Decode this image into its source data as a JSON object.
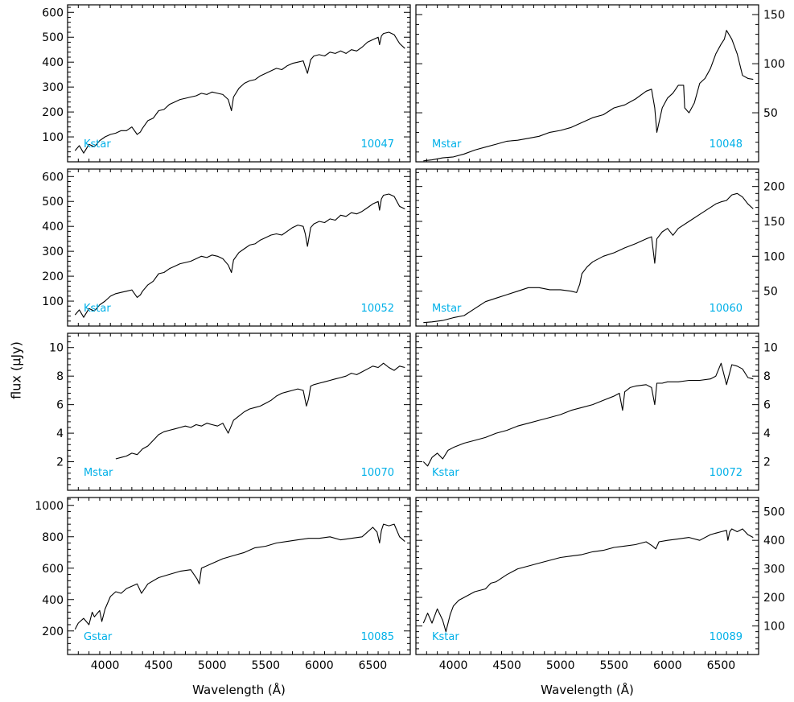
{
  "figure": {
    "ylabel": "flux (μJy)",
    "xlabel_left": "Wavelength (Å)",
    "xlabel_right": "Wavelength (Å)",
    "label_color": "#00b0e8",
    "line_color": "#000000"
  },
  "chart_data": [
    {
      "type": "line",
      "id": "10047",
      "star_type": "Kstar",
      "xlim": [
        3650,
        6850
      ],
      "ylim": [
        0,
        630
      ],
      "yticks": [
        100,
        200,
        300,
        400,
        500,
        600
      ],
      "ytick_labels": [
        "100",
        "200",
        "300",
        "400",
        "500",
        "600"
      ],
      "ytick_side": "left",
      "xticks": [
        4000,
        4500,
        5000,
        5500,
        6000,
        6500
      ],
      "xtick_labels": [],
      "x": [
        3720,
        3760,
        3800,
        3850,
        3900,
        3950,
        4000,
        4050,
        4100,
        4150,
        4200,
        4250,
        4300,
        4330,
        4350,
        4400,
        4450,
        4500,
        4550,
        4600,
        4650,
        4700,
        4750,
        4800,
        4850,
        4900,
        4950,
        5000,
        5050,
        5100,
        5150,
        5180,
        5200,
        5250,
        5300,
        5350,
        5400,
        5450,
        5500,
        5550,
        5600,
        5650,
        5700,
        5750,
        5800,
        5850,
        5870,
        5890,
        5920,
        5950,
        6000,
        6050,
        6100,
        6150,
        6200,
        6250,
        6300,
        6350,
        6400,
        6450,
        6500,
        6550,
        6563,
        6580,
        6600,
        6650,
        6700,
        6750,
        6800
      ],
      "y": [
        45,
        65,
        35,
        70,
        60,
        85,
        100,
        110,
        115,
        125,
        125,
        140,
        110,
        120,
        135,
        165,
        175,
        205,
        210,
        230,
        240,
        250,
        255,
        260,
        265,
        275,
        270,
        280,
        275,
        270,
        250,
        205,
        260,
        295,
        315,
        325,
        330,
        345,
        355,
        365,
        375,
        370,
        385,
        395,
        400,
        405,
        380,
        355,
        410,
        425,
        430,
        425,
        440,
        435,
        445,
        435,
        450,
        445,
        460,
        480,
        490,
        500,
        470,
        505,
        515,
        520,
        510,
        475,
        455
      ]
    },
    {
      "type": "line",
      "id": "10048",
      "star_type": "Mstar",
      "xlim": [
        3650,
        6850
      ],
      "ylim": [
        0,
        160
      ],
      "yticks": [
        50,
        100,
        150
      ],
      "ytick_labels": [
        "50",
        "100",
        "150"
      ],
      "ytick_side": "right",
      "xticks": [
        4000,
        4500,
        5000,
        5500,
        6000,
        6500
      ],
      "xtick_labels": [],
      "x": [
        3720,
        3800,
        3900,
        4000,
        4100,
        4200,
        4300,
        4400,
        4500,
        4600,
        4700,
        4800,
        4900,
        5000,
        5100,
        5200,
        5300,
        5400,
        5500,
        5600,
        5700,
        5800,
        5850,
        5880,
        5900,
        5950,
        6000,
        6050,
        6100,
        6150,
        6160,
        6200,
        6250,
        6300,
        6350,
        6400,
        6450,
        6500,
        6530,
        6550,
        6600,
        6650,
        6700,
        6750,
        6800
      ],
      "y": [
        1,
        2,
        4,
        5,
        8,
        12,
        15,
        18,
        21,
        22,
        24,
        26,
        30,
        32,
        35,
        40,
        45,
        48,
        55,
        58,
        64,
        72,
        74,
        55,
        30,
        55,
        65,
        70,
        78,
        78,
        55,
        50,
        60,
        80,
        85,
        95,
        110,
        120,
        125,
        134,
        125,
        110,
        88,
        85,
        84
      ]
    },
    {
      "type": "line",
      "id": "10052",
      "star_type": "Kstar",
      "xlim": [
        3650,
        6850
      ],
      "ylim": [
        0,
        630
      ],
      "yticks": [
        100,
        200,
        300,
        400,
        500,
        600
      ],
      "ytick_labels": [
        "100",
        "200",
        "300",
        "400",
        "500",
        "600"
      ],
      "ytick_side": "left",
      "xticks": [
        4000,
        4500,
        5000,
        5500,
        6000,
        6500
      ],
      "xtick_labels": [],
      "x": [
        3720,
        3760,
        3800,
        3850,
        3900,
        3950,
        4000,
        4050,
        4100,
        4150,
        4200,
        4250,
        4300,
        4330,
        4350,
        4400,
        4450,
        4500,
        4550,
        4600,
        4650,
        4700,
        4750,
        4800,
        4850,
        4900,
        4950,
        5000,
        5050,
        5100,
        5150,
        5180,
        5200,
        5250,
        5300,
        5350,
        5400,
        5450,
        5500,
        5550,
        5600,
        5650,
        5700,
        5750,
        5800,
        5850,
        5870,
        5890,
        5920,
        5950,
        6000,
        6050,
        6100,
        6150,
        6200,
        6250,
        6300,
        6350,
        6400,
        6450,
        6500,
        6550,
        6563,
        6580,
        6600,
        6650,
        6700,
        6750,
        6800
      ],
      "y": [
        45,
        65,
        35,
        70,
        60,
        85,
        100,
        120,
        130,
        135,
        140,
        145,
        115,
        125,
        140,
        165,
        180,
        210,
        215,
        230,
        240,
        250,
        255,
        260,
        270,
        280,
        275,
        285,
        280,
        270,
        245,
        215,
        265,
        295,
        310,
        325,
        330,
        345,
        355,
        365,
        370,
        365,
        380,
        395,
        405,
        400,
        370,
        320,
        395,
        410,
        420,
        415,
        430,
        425,
        445,
        440,
        455,
        450,
        460,
        475,
        490,
        500,
        465,
        510,
        525,
        530,
        520,
        480,
        470
      ]
    },
    {
      "type": "line",
      "id": "10060",
      "star_type": "Mstar",
      "xlim": [
        3650,
        6850
      ],
      "ylim": [
        0,
        225
      ],
      "yticks": [
        50,
        100,
        150,
        200
      ],
      "ytick_labels": [
        "50",
        "100",
        "150",
        "200"
      ],
      "ytick_side": "right",
      "xticks": [
        4000,
        4500,
        5000,
        5500,
        6000,
        6500
      ],
      "xtick_labels": [],
      "x": [
        3720,
        3800,
        3900,
        4000,
        4100,
        4200,
        4300,
        4400,
        4500,
        4600,
        4700,
        4800,
        4900,
        5000,
        5100,
        5150,
        5180,
        5200,
        5250,
        5300,
        5400,
        5500,
        5600,
        5700,
        5800,
        5850,
        5880,
        5900,
        5950,
        6000,
        6050,
        6100,
        6200,
        6300,
        6400,
        6450,
        6500,
        6550,
        6600,
        6650,
        6700,
        6750,
        6800
      ],
      "y": [
        5,
        6,
        8,
        12,
        15,
        25,
        35,
        40,
        45,
        50,
        55,
        55,
        52,
        52,
        50,
        48,
        60,
        75,
        85,
        92,
        100,
        105,
        112,
        118,
        125,
        128,
        90,
        125,
        135,
        140,
        130,
        140,
        150,
        160,
        170,
        175,
        178,
        180,
        188,
        190,
        185,
        175,
        168
      ]
    },
    {
      "type": "line",
      "id": "10070",
      "star_type": "Mstar",
      "xlim": [
        3650,
        6850
      ],
      "ylim": [
        0,
        11
      ],
      "yticks": [
        2,
        4,
        6,
        8,
        10
      ],
      "ytick_labels": [
        "2",
        "4",
        "6",
        "8",
        "10"
      ],
      "ytick_side": "left",
      "xticks": [
        4000,
        4500,
        5000,
        5500,
        6000,
        6500
      ],
      "xtick_labels": [],
      "x": [
        4100,
        4150,
        4200,
        4250,
        4300,
        4350,
        4400,
        4450,
        4500,
        4550,
        4600,
        4650,
        4700,
        4750,
        4800,
        4850,
        4900,
        4950,
        5000,
        5050,
        5100,
        5150,
        5200,
        5250,
        5300,
        5350,
        5400,
        5450,
        5500,
        5550,
        5600,
        5650,
        5700,
        5750,
        5800,
        5850,
        5880,
        5900,
        5920,
        5950,
        6000,
        6050,
        6100,
        6150,
        6200,
        6250,
        6300,
        6350,
        6400,
        6450,
        6500,
        6550,
        6600,
        6650,
        6700,
        6750,
        6800
      ],
      "y": [
        2.2,
        2.3,
        2.4,
        2.6,
        2.5,
        2.9,
        3.1,
        3.5,
        3.9,
        4.1,
        4.2,
        4.3,
        4.4,
        4.5,
        4.4,
        4.6,
        4.5,
        4.7,
        4.6,
        4.5,
        4.7,
        4.0,
        4.9,
        5.2,
        5.5,
        5.7,
        5.8,
        5.9,
        6.1,
        6.3,
        6.6,
        6.8,
        6.9,
        7.0,
        7.1,
        7.0,
        5.9,
        6.4,
        7.3,
        7.4,
        7.5,
        7.6,
        7.7,
        7.8,
        7.9,
        8.0,
        8.2,
        8.1,
        8.3,
        8.5,
        8.7,
        8.6,
        8.9,
        8.6,
        8.4,
        8.7,
        8.6
      ]
    },
    {
      "type": "line",
      "id": "10072",
      "star_type": "Kstar",
      "xlim": [
        3650,
        6850
      ],
      "ylim": [
        0,
        11
      ],
      "yticks": [
        2,
        4,
        6,
        8,
        10
      ],
      "ytick_labels": [
        "2",
        "4",
        "6",
        "8",
        "10"
      ],
      "ytick_side": "right",
      "xticks": [
        4000,
        4500,
        5000,
        5500,
        6000,
        6500
      ],
      "xtick_labels": [],
      "x": [
        3720,
        3760,
        3800,
        3850,
        3900,
        3950,
        4000,
        4100,
        4200,
        4300,
        4400,
        4500,
        4600,
        4700,
        4800,
        4900,
        5000,
        5100,
        5200,
        5300,
        5400,
        5500,
        5550,
        5580,
        5600,
        5650,
        5700,
        5800,
        5850,
        5880,
        5900,
        5950,
        6000,
        6100,
        6200,
        6300,
        6400,
        6450,
        6500,
        6550,
        6600,
        6650,
        6700,
        6750,
        6800
      ],
      "y": [
        2.0,
        1.7,
        2.3,
        2.6,
        2.2,
        2.8,
        3.0,
        3.3,
        3.5,
        3.7,
        4.0,
        4.2,
        4.5,
        4.7,
        4.9,
        5.1,
        5.3,
        5.6,
        5.8,
        6.0,
        6.3,
        6.6,
        6.8,
        5.6,
        6.9,
        7.2,
        7.3,
        7.4,
        7.2,
        6.0,
        7.5,
        7.5,
        7.6,
        7.6,
        7.7,
        7.7,
        7.8,
        8.0,
        8.9,
        7.4,
        8.8,
        8.7,
        8.5,
        7.9,
        7.8
      ]
    },
    {
      "type": "line",
      "id": "10085",
      "star_type": "Gstar",
      "xlim": [
        3650,
        6850
      ],
      "ylim": [
        50,
        1050
      ],
      "yticks": [
        200,
        400,
        600,
        800,
        1000
      ],
      "ytick_labels": [
        "200",
        "400",
        "600",
        "800",
        "1000"
      ],
      "ytick_side": "left",
      "xticks": [
        4000,
        4500,
        5000,
        5500,
        6000,
        6500
      ],
      "xtick_labels": [
        "4000",
        "4500",
        "5000",
        "5500",
        "6000",
        "6500"
      ],
      "x": [
        3720,
        3750,
        3800,
        3850,
        3880,
        3900,
        3950,
        3970,
        4000,
        4050,
        4100,
        4150,
        4200,
        4300,
        4340,
        4400,
        4500,
        4600,
        4700,
        4800,
        4860,
        4880,
        4900,
        5000,
        5100,
        5200,
        5300,
        5400,
        5500,
        5600,
        5700,
        5800,
        5900,
        6000,
        6100,
        6200,
        6300,
        6400,
        6500,
        6540,
        6563,
        6580,
        6600,
        6650,
        6700,
        6750,
        6800
      ],
      "y": [
        210,
        250,
        280,
        240,
        320,
        290,
        330,
        260,
        340,
        420,
        450,
        440,
        470,
        500,
        440,
        500,
        540,
        560,
        580,
        590,
        530,
        500,
        600,
        630,
        660,
        680,
        700,
        730,
        740,
        760,
        770,
        780,
        790,
        790,
        800,
        780,
        790,
        800,
        860,
        830,
        760,
        840,
        880,
        870,
        880,
        800,
        770
      ]
    },
    {
      "type": "line",
      "id": "10089",
      "star_type": "Kstar",
      "xlim": [
        3650,
        6850
      ],
      "ylim": [
        0,
        550
      ],
      "yticks": [
        100,
        200,
        300,
        400,
        500
      ],
      "ytick_labels": [
        "100",
        "200",
        "300",
        "400",
        "500"
      ],
      "ytick_side": "right",
      "xticks": [
        4000,
        4500,
        5000,
        5500,
        6000,
        6500
      ],
      "xtick_labels": [
        "4000",
        "4500",
        "5000",
        "5500",
        "6000",
        "6500"
      ],
      "x": [
        3720,
        3760,
        3800,
        3850,
        3900,
        3930,
        3970,
        4000,
        4050,
        4100,
        4150,
        4200,
        4300,
        4350,
        4400,
        4500,
        4600,
        4700,
        4800,
        4900,
        5000,
        5100,
        5200,
        5300,
        5400,
        5500,
        5600,
        5700,
        5800,
        5860,
        5890,
        5920,
        6000,
        6100,
        6200,
        6300,
        6400,
        6500,
        6550,
        6563,
        6580,
        6600,
        6650,
        6700,
        6750,
        6800
      ],
      "y": [
        110,
        145,
        110,
        160,
        120,
        80,
        140,
        170,
        190,
        200,
        210,
        220,
        230,
        250,
        255,
        280,
        300,
        310,
        320,
        330,
        340,
        345,
        350,
        360,
        365,
        375,
        380,
        385,
        395,
        380,
        370,
        395,
        400,
        405,
        410,
        400,
        420,
        430,
        435,
        400,
        430,
        440,
        430,
        440,
        420,
        410
      ]
    }
  ]
}
